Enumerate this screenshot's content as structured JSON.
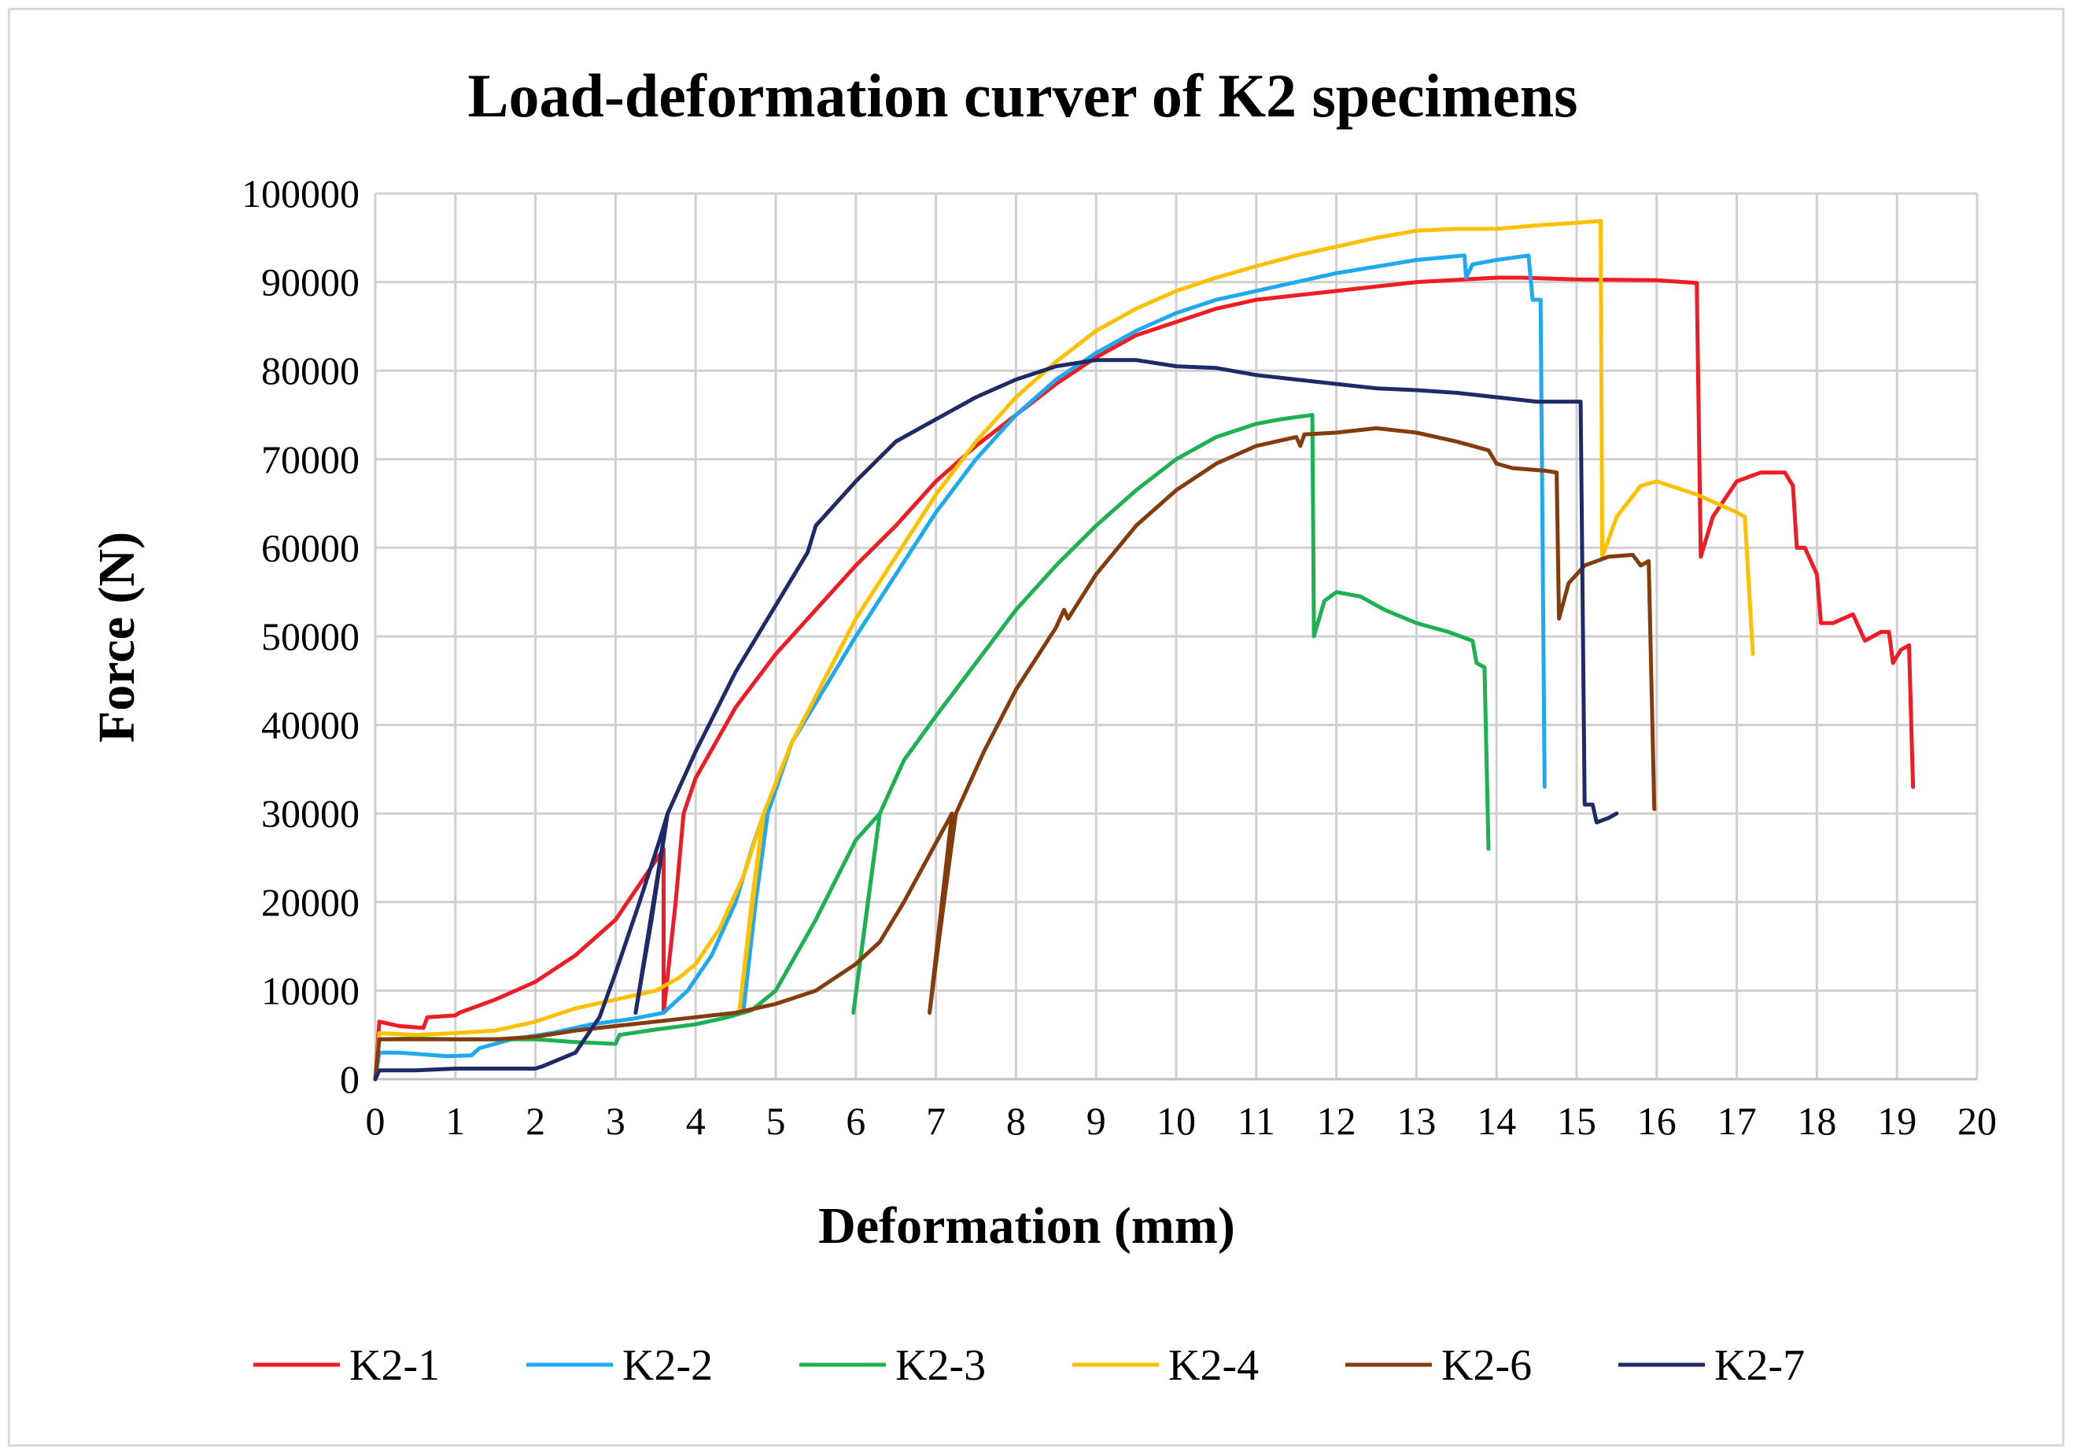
{
  "chart_data": {
    "type": "line",
    "title": "Load-deformation  curver of K2 specimens",
    "xlabel": "Deformation (mm)",
    "ylabel": "Force (N)",
    "xlim": [
      0,
      20
    ],
    "ylim": [
      0,
      100000
    ],
    "xticks": [
      0,
      1,
      2,
      3,
      4,
      5,
      6,
      7,
      8,
      9,
      10,
      11,
      12,
      13,
      14,
      15,
      16,
      17,
      18,
      19,
      20
    ],
    "yticks": [
      0,
      10000,
      20000,
      30000,
      40000,
      50000,
      60000,
      70000,
      80000,
      90000,
      100000
    ],
    "grid": true,
    "legend_position": "bottom",
    "series": [
      {
        "name": "K2-1",
        "color": "#ee1c24",
        "points": [
          [
            0,
            0
          ],
          [
            0.05,
            6500
          ],
          [
            0.3,
            6000
          ],
          [
            0.6,
            5800
          ],
          [
            0.65,
            7000
          ],
          [
            1.0,
            7200
          ],
          [
            1.05,
            7500
          ],
          [
            1.5,
            9000
          ],
          [
            2.0,
            11000
          ],
          [
            2.5,
            14000
          ],
          [
            3.0,
            18000
          ],
          [
            3.3,
            22000
          ],
          [
            3.6,
            26000
          ],
          [
            3.6,
            7500
          ],
          [
            3.75,
            20000
          ],
          [
            3.85,
            30000
          ],
          [
            4.0,
            34000
          ],
          [
            4.5,
            42000
          ],
          [
            5.0,
            48000
          ],
          [
            5.5,
            53000
          ],
          [
            6.0,
            58000
          ],
          [
            6.5,
            62500
          ],
          [
            7.0,
            67500
          ],
          [
            7.5,
            71500
          ],
          [
            8.0,
            75000
          ],
          [
            8.5,
            78500
          ],
          [
            9.0,
            81500
          ],
          [
            9.5,
            84000
          ],
          [
            10.0,
            85500
          ],
          [
            10.5,
            87000
          ],
          [
            11.0,
            88000
          ],
          [
            11.5,
            88500
          ],
          [
            12.0,
            89000
          ],
          [
            13.0,
            90000
          ],
          [
            14.0,
            90500
          ],
          [
            14.3,
            90500
          ],
          [
            15.0,
            90300
          ],
          [
            16.0,
            90200
          ],
          [
            16.5,
            89900
          ],
          [
            16.55,
            59000
          ],
          [
            16.7,
            63500
          ],
          [
            17.0,
            67500
          ],
          [
            17.3,
            68500
          ],
          [
            17.6,
            68500
          ],
          [
            17.7,
            67000
          ],
          [
            17.75,
            60000
          ],
          [
            17.85,
            60000
          ],
          [
            18.0,
            57000
          ],
          [
            18.05,
            51500
          ],
          [
            18.2,
            51500
          ],
          [
            18.45,
            52500
          ],
          [
            18.6,
            49500
          ],
          [
            18.8,
            50500
          ],
          [
            18.9,
            50500
          ],
          [
            18.95,
            47000
          ],
          [
            19.05,
            48500
          ],
          [
            19.15,
            49000
          ],
          [
            19.2,
            33000
          ]
        ]
      },
      {
        "name": "K2-2",
        "color": "#1fa9f0",
        "points": [
          [
            0,
            0
          ],
          [
            0.05,
            3000
          ],
          [
            0.3,
            3000
          ],
          [
            0.9,
            2600
          ],
          [
            1.2,
            2700
          ],
          [
            1.3,
            3500
          ],
          [
            1.7,
            4500
          ],
          [
            2.2,
            5200
          ],
          [
            2.7,
            6200
          ],
          [
            3.2,
            6800
          ],
          [
            3.6,
            7500
          ],
          [
            3.9,
            10000
          ],
          [
            4.2,
            14000
          ],
          [
            4.5,
            20000
          ],
          [
            4.7,
            26000
          ],
          [
            4.85,
            30000
          ],
          [
            4.6,
            8000
          ],
          [
            4.75,
            20000
          ],
          [
            4.9,
            30000
          ],
          [
            5.2,
            38000
          ],
          [
            5.6,
            44000
          ],
          [
            6.0,
            50000
          ],
          [
            6.5,
            57000
          ],
          [
            7.0,
            64000
          ],
          [
            7.5,
            70000
          ],
          [
            8.0,
            75000
          ],
          [
            8.5,
            79000
          ],
          [
            9.0,
            82000
          ],
          [
            9.5,
            84500
          ],
          [
            10.0,
            86500
          ],
          [
            10.5,
            88000
          ],
          [
            11.0,
            89000
          ],
          [
            11.5,
            90000
          ],
          [
            12.0,
            91000
          ],
          [
            13.0,
            92500
          ],
          [
            13.6,
            93000
          ],
          [
            13.62,
            90500
          ],
          [
            13.7,
            92000
          ],
          [
            14.0,
            92500
          ],
          [
            14.4,
            93000
          ],
          [
            14.45,
            88000
          ],
          [
            14.55,
            88000
          ],
          [
            14.6,
            33000
          ]
        ]
      },
      {
        "name": "K2-3",
        "color": "#1db152",
        "points": [
          [
            0,
            0
          ],
          [
            0.05,
            4500
          ],
          [
            0.5,
            4600
          ],
          [
            1.0,
            4500
          ],
          [
            2.0,
            4500
          ],
          [
            2.5,
            4200
          ],
          [
            3.0,
            4000
          ],
          [
            3.05,
            5000
          ],
          [
            3.5,
            5600
          ],
          [
            4.0,
            6200
          ],
          [
            4.4,
            7000
          ],
          [
            4.7,
            7800
          ],
          [
            5.0,
            10000
          ],
          [
            5.5,
            18000
          ],
          [
            6.0,
            27000
          ],
          [
            6.3,
            30000
          ],
          [
            5.97,
            7500
          ],
          [
            6.15,
            20000
          ],
          [
            6.3,
            30000
          ],
          [
            6.6,
            36000
          ],
          [
            7.0,
            41000
          ],
          [
            7.5,
            47000
          ],
          [
            8.0,
            53000
          ],
          [
            8.5,
            58000
          ],
          [
            9.0,
            62500
          ],
          [
            9.5,
            66500
          ],
          [
            10.0,
            70000
          ],
          [
            10.5,
            72500
          ],
          [
            11.0,
            74000
          ],
          [
            11.3,
            74500
          ],
          [
            11.7,
            75000
          ],
          [
            11.72,
            50000
          ],
          [
            11.85,
            54000
          ],
          [
            12.0,
            55000
          ],
          [
            12.3,
            54500
          ],
          [
            12.6,
            53000
          ],
          [
            13.0,
            51500
          ],
          [
            13.4,
            50500
          ],
          [
            13.7,
            49500
          ],
          [
            13.75,
            47000
          ],
          [
            13.85,
            46500
          ],
          [
            13.9,
            26000
          ]
        ]
      },
      {
        "name": "K2-4",
        "color": "#ffc000",
        "points": [
          [
            0,
            0
          ],
          [
            0.05,
            5200
          ],
          [
            0.5,
            5000
          ],
          [
            1.0,
            5200
          ],
          [
            1.5,
            5500
          ],
          [
            2.0,
            6500
          ],
          [
            2.5,
            8000
          ],
          [
            3.0,
            9000
          ],
          [
            3.5,
            10000
          ],
          [
            3.8,
            11500
          ],
          [
            4.0,
            13000
          ],
          [
            4.3,
            17000
          ],
          [
            4.6,
            23000
          ],
          [
            4.85,
            30000
          ],
          [
            4.55,
            8000
          ],
          [
            4.7,
            20000
          ],
          [
            4.85,
            30000
          ],
          [
            5.2,
            38000
          ],
          [
            5.6,
            45000
          ],
          [
            6.0,
            52000
          ],
          [
            6.5,
            59000
          ],
          [
            7.0,
            66000
          ],
          [
            7.5,
            72000
          ],
          [
            8.0,
            77000
          ],
          [
            8.5,
            81000
          ],
          [
            9.0,
            84500
          ],
          [
            9.5,
            87000
          ],
          [
            10.0,
            89000
          ],
          [
            10.5,
            90500
          ],
          [
            11.0,
            91800
          ],
          [
            11.5,
            93000
          ],
          [
            12.0,
            94000
          ],
          [
            12.5,
            95000
          ],
          [
            13.0,
            95800
          ],
          [
            13.5,
            96000
          ],
          [
            14.0,
            96000
          ],
          [
            14.5,
            96400
          ],
          [
            15.0,
            96700
          ],
          [
            15.3,
            96900
          ],
          [
            15.32,
            59000
          ],
          [
            15.5,
            63500
          ],
          [
            15.8,
            67000
          ],
          [
            16.0,
            67500
          ],
          [
            16.5,
            66000
          ],
          [
            17.0,
            64000
          ],
          [
            17.1,
            63500
          ],
          [
            17.2,
            48000
          ]
        ]
      },
      {
        "name": "K2-6",
        "color": "#843c0c",
        "points": [
          [
            0,
            0
          ],
          [
            0.05,
            4500
          ],
          [
            0.5,
            4500
          ],
          [
            1.5,
            4500
          ],
          [
            2.0,
            4800
          ],
          [
            2.5,
            5500
          ],
          [
            3.0,
            6000
          ],
          [
            3.5,
            6500
          ],
          [
            4.0,
            7000
          ],
          [
            4.5,
            7500
          ],
          [
            5.0,
            8500
          ],
          [
            5.5,
            10000
          ],
          [
            6.0,
            13000
          ],
          [
            6.3,
            15500
          ],
          [
            6.6,
            20000
          ],
          [
            6.9,
            25000
          ],
          [
            7.2,
            30000
          ],
          [
            6.92,
            7500
          ],
          [
            7.1,
            20000
          ],
          [
            7.25,
            30000
          ],
          [
            7.6,
            37000
          ],
          [
            8.0,
            44000
          ],
          [
            8.5,
            51000
          ],
          [
            8.6,
            53000
          ],
          [
            8.65,
            52000
          ],
          [
            9.0,
            57000
          ],
          [
            9.5,
            62500
          ],
          [
            10.0,
            66500
          ],
          [
            10.5,
            69500
          ],
          [
            11.0,
            71500
          ],
          [
            11.5,
            72500
          ],
          [
            11.55,
            71500
          ],
          [
            11.6,
            72800
          ],
          [
            12.0,
            73000
          ],
          [
            12.5,
            73500
          ],
          [
            13.0,
            73000
          ],
          [
            13.5,
            72000
          ],
          [
            13.9,
            71000
          ],
          [
            14.0,
            69500
          ],
          [
            14.2,
            69000
          ],
          [
            14.6,
            68700
          ],
          [
            14.75,
            68500
          ],
          [
            14.78,
            52000
          ],
          [
            14.9,
            56000
          ],
          [
            15.1,
            58000
          ],
          [
            15.4,
            59000
          ],
          [
            15.7,
            59200
          ],
          [
            15.8,
            58000
          ],
          [
            15.9,
            58500
          ],
          [
            15.97,
            30500
          ]
        ]
      },
      {
        "name": "K2-7",
        "color": "#1f2a68",
        "points": [
          [
            0,
            0
          ],
          [
            0.05,
            1000
          ],
          [
            0.5,
            1000
          ],
          [
            1.0,
            1200
          ],
          [
            1.5,
            1200
          ],
          [
            2.0,
            1200
          ],
          [
            2.1,
            1500
          ],
          [
            2.5,
            3000
          ],
          [
            2.8,
            7000
          ],
          [
            3.0,
            12000
          ],
          [
            3.3,
            20000
          ],
          [
            3.55,
            27000
          ],
          [
            3.65,
            30000
          ],
          [
            3.25,
            7500
          ],
          [
            3.45,
            18000
          ],
          [
            3.65,
            30000
          ],
          [
            4.0,
            37000
          ],
          [
            4.5,
            46000
          ],
          [
            5.0,
            53500
          ],
          [
            5.4,
            59500
          ],
          [
            5.5,
            62500
          ],
          [
            6.0,
            67500
          ],
          [
            6.5,
            72000
          ],
          [
            7.0,
            74500
          ],
          [
            7.5,
            77000
          ],
          [
            8.0,
            79000
          ],
          [
            8.5,
            80500
          ],
          [
            9.0,
            81200
          ],
          [
            9.5,
            81200
          ],
          [
            10.0,
            80500
          ],
          [
            10.5,
            80300
          ],
          [
            11.0,
            79500
          ],
          [
            11.5,
            79000
          ],
          [
            12.0,
            78500
          ],
          [
            12.5,
            78000
          ],
          [
            13.0,
            77800
          ],
          [
            13.5,
            77500
          ],
          [
            14.0,
            77000
          ],
          [
            14.5,
            76500
          ],
          [
            14.8,
            76500
          ],
          [
            15.05,
            76500
          ],
          [
            15.1,
            31000
          ],
          [
            15.2,
            31000
          ],
          [
            15.25,
            29000
          ],
          [
            15.4,
            29500
          ],
          [
            15.5,
            30000
          ]
        ]
      }
    ]
  }
}
